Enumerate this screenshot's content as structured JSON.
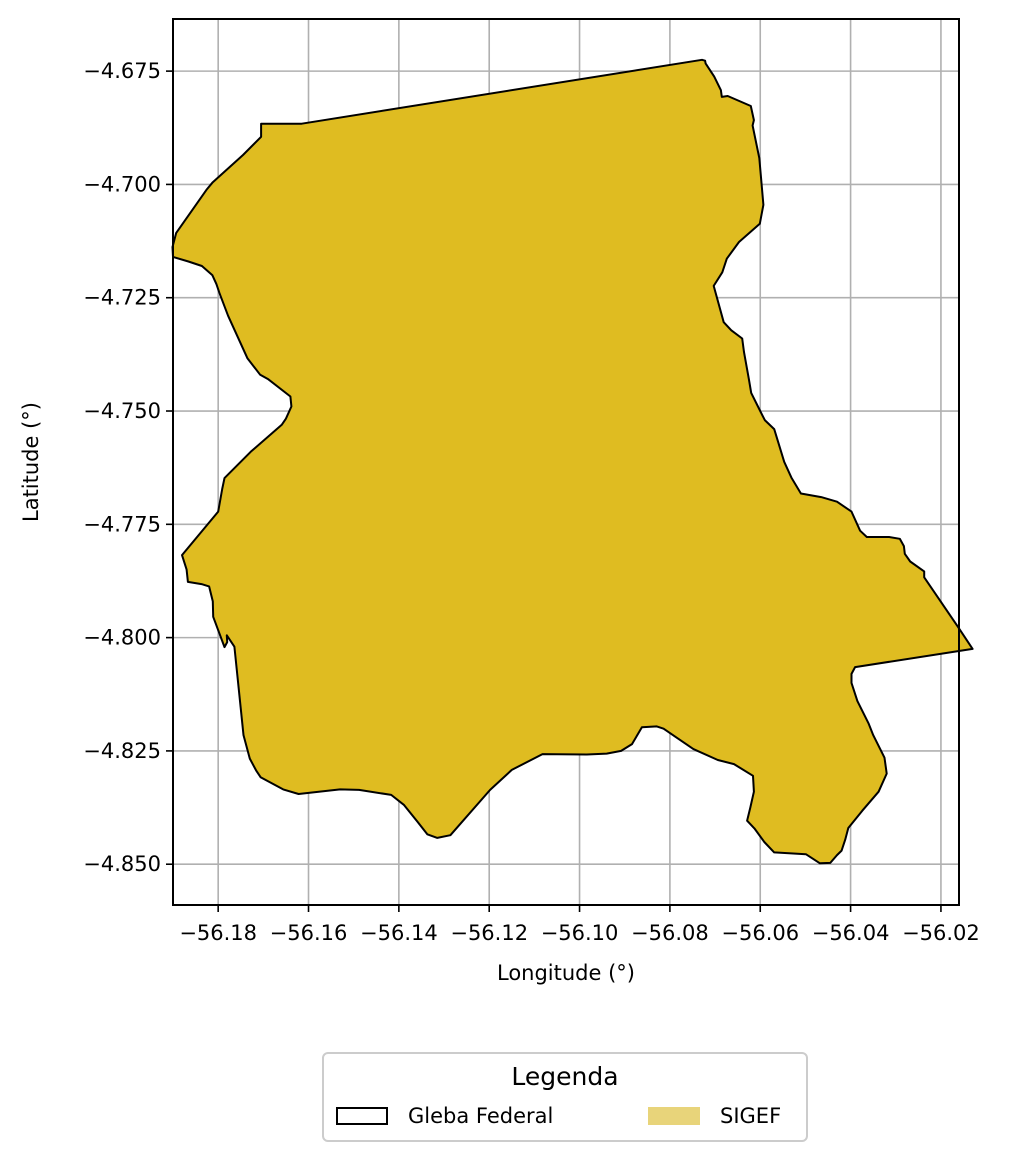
{
  "chart_data": {
    "type": "map",
    "xlabel": "Longitude (°)",
    "ylabel": "Latitude (°)",
    "xlim": [
      -56.19,
      -56.016
    ],
    "ylim": [
      -4.859,
      -4.6635
    ],
    "x_ticks": [
      -56.18,
      -56.16,
      -56.14,
      -56.12,
      -56.1,
      -56.08,
      -56.06,
      -56.04,
      -56.02
    ],
    "x_tick_labels": [
      "−56.18",
      "−56.16",
      "−56.14",
      "−56.12",
      "−56.10",
      "−56.08",
      "−56.06",
      "−56.04",
      "−56.02"
    ],
    "y_ticks": [
      -4.675,
      -4.7,
      -4.725,
      -4.75,
      -4.775,
      -4.8,
      -4.825,
      -4.85
    ],
    "y_tick_labels": [
      "−4.675",
      "−4.700",
      "−4.725",
      "−4.750",
      "−4.775",
      "−4.800",
      "−4.825",
      "−4.850"
    ],
    "grid": true,
    "fill_color": "#dfbc21",
    "edge_color": "#000000",
    "polygon": [
      [
        -56.1615,
        -4.6866
      ],
      [
        -56.0729,
        -4.6725
      ],
      [
        -56.0722,
        -4.6727
      ],
      [
        -56.0721,
        -4.6733
      ],
      [
        -56.0702,
        -4.6762
      ],
      [
        -56.0687,
        -4.6792
      ],
      [
        -56.0685,
        -4.6807
      ],
      [
        -56.0672,
        -4.6805
      ],
      [
        -56.0621,
        -4.6827
      ],
      [
        -56.0614,
        -4.6858
      ],
      [
        -56.0617,
        -4.687
      ],
      [
        -56.0602,
        -4.6942
      ],
      [
        -56.0593,
        -4.7045
      ],
      [
        -56.0601,
        -4.7087
      ],
      [
        -56.0647,
        -4.7127
      ],
      [
        -56.0674,
        -4.7164
      ],
      [
        -56.0684,
        -4.7194
      ],
      [
        -56.0703,
        -4.7224
      ],
      [
        -56.0681,
        -4.7304
      ],
      [
        -56.0664,
        -4.7322
      ],
      [
        -56.064,
        -4.734
      ],
      [
        -56.0636,
        -4.737
      ],
      [
        -56.0625,
        -4.743
      ],
      [
        -56.062,
        -4.746
      ],
      [
        -56.06,
        -4.75
      ],
      [
        -56.059,
        -4.752
      ],
      [
        -56.0569,
        -4.754
      ],
      [
        -56.0547,
        -4.7612
      ],
      [
        -56.0531,
        -4.7647
      ],
      [
        -56.051,
        -4.7682
      ],
      [
        -56.0465,
        -4.769
      ],
      [
        -56.043,
        -4.77
      ],
      [
        -56.0398,
        -4.7722
      ],
      [
        -56.0379,
        -4.7764
      ],
      [
        -56.0364,
        -4.7778
      ],
      [
        -56.0315,
        -4.7778
      ],
      [
        -56.0291,
        -4.7782
      ],
      [
        -56.0282,
        -4.7798
      ],
      [
        -56.028,
        -4.7815
      ],
      [
        -56.0268,
        -4.7832
      ],
      [
        -56.0237,
        -4.7854
      ],
      [
        -56.0237,
        -4.7867
      ],
      [
        -56.0163,
        -4.7975
      ],
      [
        -56.013,
        -4.8025
      ],
      [
        -56.039,
        -4.8065
      ],
      [
        -56.0398,
        -4.808
      ],
      [
        -56.0398,
        -4.81
      ],
      [
        -56.0385,
        -4.814
      ],
      [
        -56.036,
        -4.819
      ],
      [
        -56.035,
        -4.8215
      ],
      [
        -56.0325,
        -4.8265
      ],
      [
        -56.032,
        -4.83
      ],
      [
        -56.0338,
        -4.834
      ],
      [
        -56.0374,
        -4.8382
      ],
      [
        -56.0405,
        -4.842
      ],
      [
        -56.0412,
        -4.8446
      ],
      [
        -56.042,
        -4.847
      ],
      [
        -56.043,
        -4.848
      ],
      [
        -56.0445,
        -4.8497
      ],
      [
        -56.0468,
        -4.8498
      ],
      [
        -56.0499,
        -4.8478
      ],
      [
        -56.0569,
        -4.8474
      ],
      [
        -56.0591,
        -4.8451
      ],
      [
        -56.0613,
        -4.8421
      ],
      [
        -56.0629,
        -4.8404
      ],
      [
        -56.0622,
        -4.8375
      ],
      [
        -56.0614,
        -4.834
      ],
      [
        -56.0616,
        -4.8305
      ],
      [
        -56.0658,
        -4.8279
      ],
      [
        -56.0694,
        -4.827
      ],
      [
        -56.0748,
        -4.8246
      ],
      [
        -56.0789,
        -4.8218
      ],
      [
        -56.0814,
        -4.8201
      ],
      [
        -56.0829,
        -4.8196
      ],
      [
        -56.0862,
        -4.8198
      ],
      [
        -56.0884,
        -4.8235
      ],
      [
        -56.0908,
        -4.825
      ],
      [
        -56.094,
        -4.8256
      ],
      [
        -56.0984,
        -4.8258
      ],
      [
        -56.1082,
        -4.8257
      ],
      [
        -56.115,
        -4.8292
      ],
      [
        -56.1198,
        -4.8336
      ],
      [
        -56.1286,
        -4.8436
      ],
      [
        -56.1315,
        -4.8442
      ],
      [
        -56.1337,
        -4.8434
      ],
      [
        -56.1359,
        -4.8406
      ],
      [
        -56.1389,
        -4.8369
      ],
      [
        -56.1417,
        -4.8347
      ],
      [
        -56.1488,
        -4.8336
      ],
      [
        -56.153,
        -4.8335
      ],
      [
        -56.1622,
        -4.8345
      ],
      [
        -56.1656,
        -4.8335
      ],
      [
        -56.1706,
        -4.8308
      ],
      [
        -56.1716,
        -4.8293
      ],
      [
        -56.173,
        -4.8267
      ],
      [
        -56.1744,
        -4.8215
      ],
      [
        -56.1764,
        -4.802
      ],
      [
        -56.1781,
        -4.7995
      ],
      [
        -56.178,
        -4.801
      ],
      [
        -56.1786,
        -4.8021
      ],
      [
        -56.1811,
        -4.7954
      ],
      [
        -56.1812,
        -4.792
      ],
      [
        -56.182,
        -4.7887
      ],
      [
        -56.1837,
        -4.7882
      ],
      [
        -56.1867,
        -4.7877
      ],
      [
        -56.187,
        -4.785
      ],
      [
        -56.188,
        -4.7818
      ],
      [
        -56.18,
        -4.7722
      ],
      [
        -56.1791,
        -4.7672
      ],
      [
        -56.1786,
        -4.7648
      ],
      [
        -56.1728,
        -4.759
      ],
      [
        -56.1659,
        -4.753
      ],
      [
        -56.165,
        -4.7517
      ],
      [
        -56.1638,
        -4.749
      ],
      [
        -56.164,
        -4.7468
      ],
      [
        -56.1689,
        -4.743
      ],
      [
        -56.1707,
        -4.742
      ],
      [
        -56.1735,
        -4.7384
      ],
      [
        -56.1778,
        -4.729
      ],
      [
        -56.1797,
        -4.724
      ],
      [
        -56.1804,
        -4.722
      ],
      [
        -56.1813,
        -4.72
      ],
      [
        -56.1836,
        -4.718
      ],
      [
        -56.1866,
        -4.717
      ],
      [
        -56.19,
        -4.716
      ],
      [
        -56.1901,
        -4.7138
      ],
      [
        -56.1893,
        -4.7107
      ],
      [
        -56.1826,
        -4.7012
      ],
      [
        -56.1812,
        -4.6995
      ],
      [
        -56.1745,
        -4.6935
      ],
      [
        -56.1705,
        -4.6895
      ],
      [
        -56.1705,
        -4.6866
      ]
    ]
  },
  "legend": {
    "title": "Legenda",
    "items": [
      {
        "label": "Gleba Federal",
        "fill": "#ffffff",
        "edge": "#000000"
      },
      {
        "label": "SIGEF",
        "fill": "#e8d47a",
        "edge": "none"
      }
    ]
  }
}
